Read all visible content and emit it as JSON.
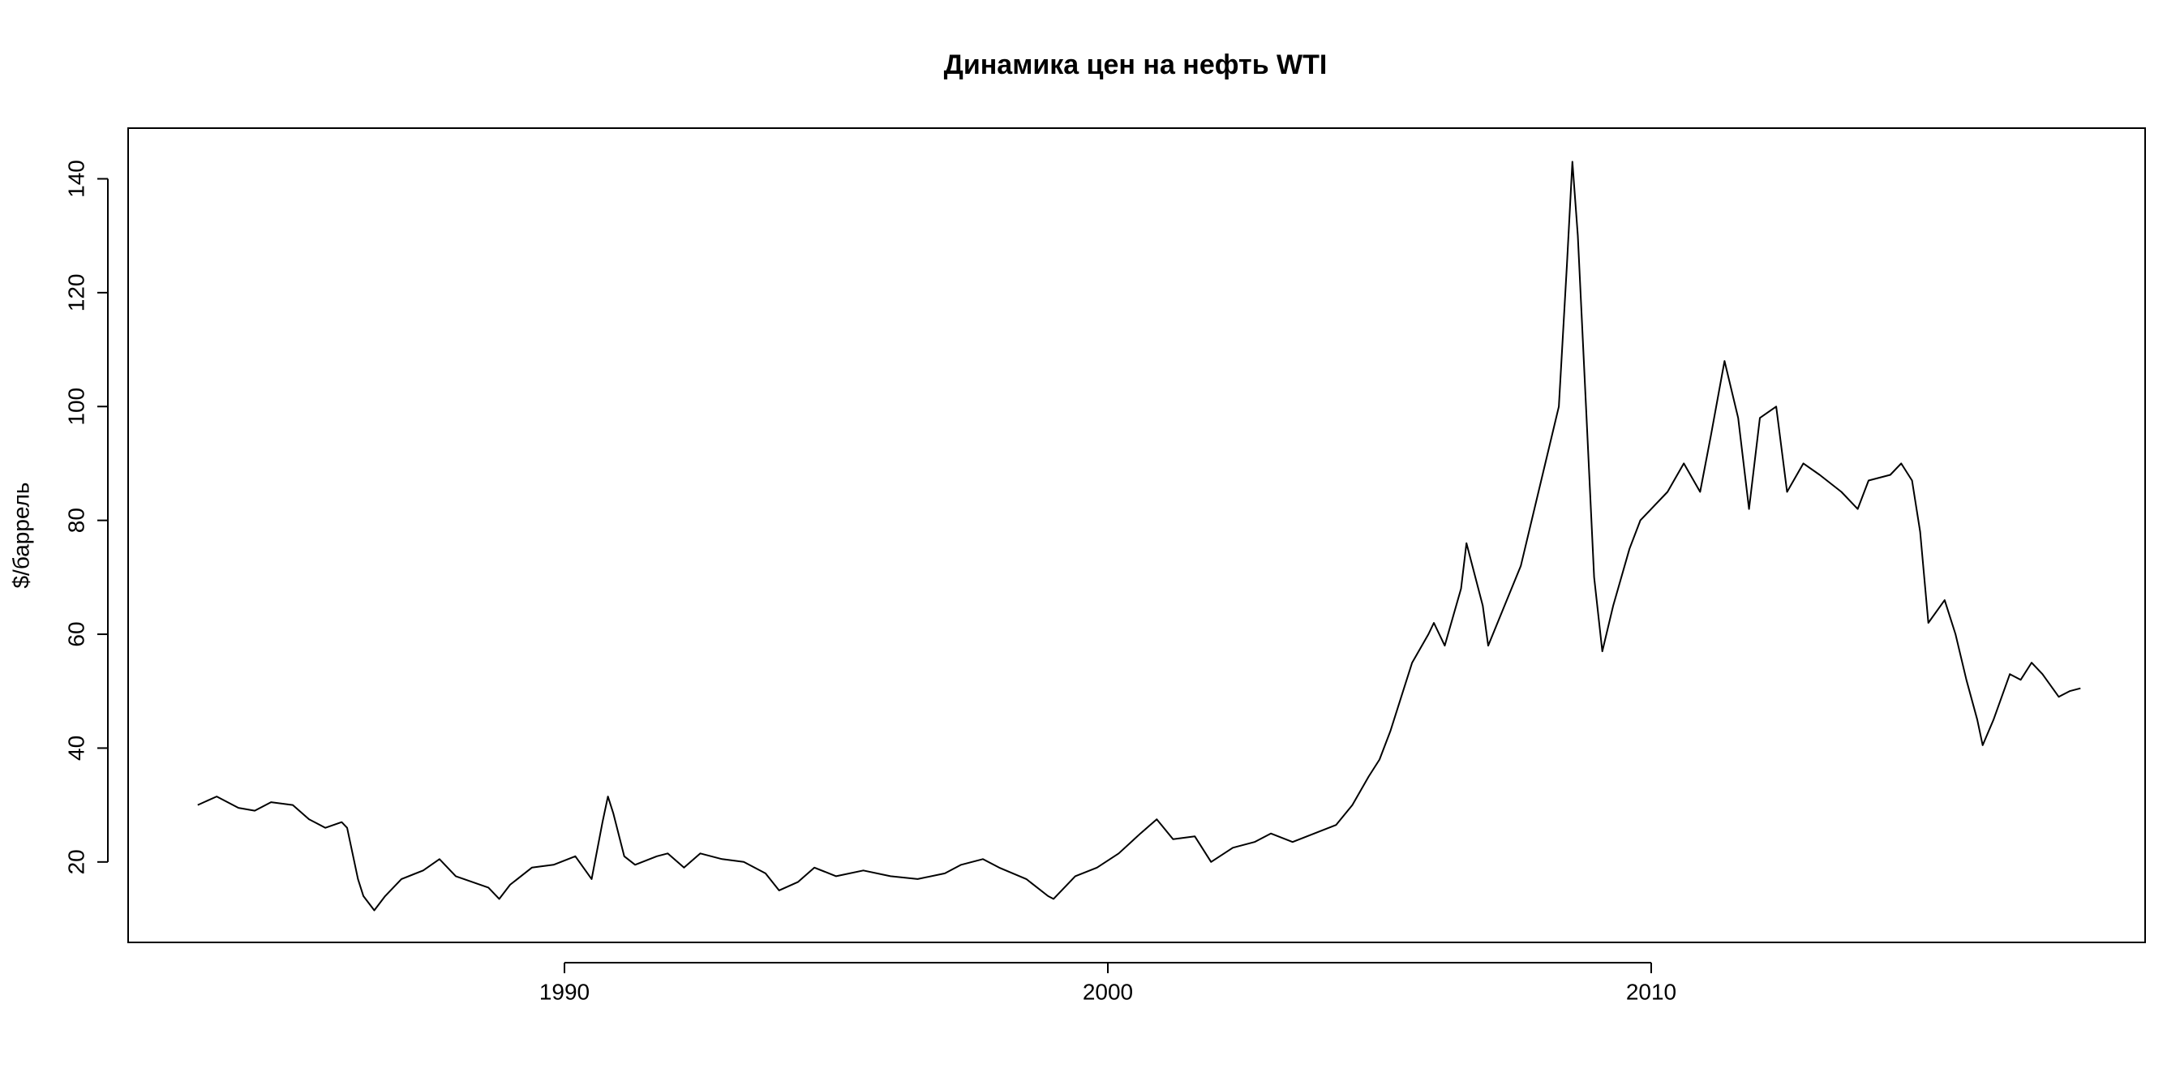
{
  "chart_data": {
    "type": "line",
    "title": "Динамика цен на нефть WTI",
    "ylabel": "$/баррель",
    "color": "#000000",
    "x": [
      1983.25,
      1983.6,
      1984.0,
      1984.3,
      1984.6,
      1985.0,
      1985.3,
      1985.6,
      1985.9,
      1986.0,
      1986.2,
      1986.3,
      1986.5,
      1986.7,
      1987.0,
      1987.4,
      1987.7,
      1988.0,
      1988.3,
      1988.6,
      1988.8,
      1989.0,
      1989.4,
      1989.8,
      1990.2,
      1990.5,
      1990.7,
      1990.8,
      1990.9,
      1991.1,
      1991.3,
      1991.7,
      1991.9,
      1992.2,
      1992.5,
      1992.9,
      1993.3,
      1993.7,
      1993.95,
      1994.3,
      1994.6,
      1995.0,
      1995.5,
      1996.0,
      1996.5,
      1997.0,
      1997.3,
      1997.7,
      1998.0,
      1998.5,
      1998.9,
      1999.0,
      1999.4,
      1999.8,
      2000.2,
      2000.6,
      2000.9,
      2001.2,
      2001.6,
      2001.9,
      2002.3,
      2002.7,
      2003.0,
      2003.4,
      2003.8,
      2004.2,
      2004.5,
      2004.8,
      2005.0,
      2005.2,
      2005.4,
      2005.6,
      2005.9,
      2006.0,
      2006.2,
      2006.5,
      2006.6,
      2006.9,
      2007.0,
      2007.3,
      2007.6,
      2007.8,
      2008.0,
      2008.3,
      2008.45,
      2008.55,
      2008.65,
      2008.8,
      2008.95,
      2009.1,
      2009.3,
      2009.6,
      2009.8,
      2010.0,
      2010.3,
      2010.6,
      2010.9,
      2011.1,
      2011.35,
      2011.6,
      2011.8,
      2012.0,
      2012.3,
      2012.5,
      2012.8,
      2013.1,
      2013.5,
      2013.8,
      2014.0,
      2014.4,
      2014.6,
      2014.8,
      2014.95,
      2015.1,
      2015.4,
      2015.6,
      2015.8,
      2016.0,
      2016.1,
      2016.3,
      2016.6,
      2016.8,
      2017.0,
      2017.2,
      2017.5,
      2017.7,
      2017.9
    ],
    "values": [
      30,
      31.5,
      29.5,
      29,
      30.5,
      30,
      27.5,
      26,
      27,
      26,
      17,
      14,
      11.5,
      14,
      17,
      18.5,
      20.5,
      17.5,
      16.5,
      15.5,
      13.5,
      16,
      19,
      19.5,
      21,
      17,
      27,
      31.5,
      28.5,
      21,
      19.5,
      21,
      21.5,
      19,
      21.5,
      20.5,
      20,
      18,
      15,
      16.5,
      19,
      17.5,
      18.5,
      17.5,
      17,
      18,
      19.5,
      20.5,
      19,
      17,
      14,
      13.5,
      17.5,
      19,
      21.5,
      25,
      27.5,
      24,
      24.5,
      20,
      22.5,
      23.5,
      25,
      23.5,
      25,
      26.5,
      30,
      35,
      38,
      43,
      49,
      55,
      60,
      62,
      58,
      68,
      76,
      65,
      58,
      65,
      72,
      80,
      88,
      100,
      125,
      143,
      130,
      100,
      70,
      57,
      65,
      75,
      80,
      82,
      85,
      90,
      85,
      95,
      108,
      98,
      82,
      98,
      100,
      85,
      90,
      88,
      85,
      82,
      87,
      88,
      90,
      87,
      78,
      62,
      66,
      60,
      52,
      45,
      40.5,
      45,
      53,
      52,
      55,
      53,
      49,
      50,
      50.5
    ],
    "xlim": [
      1981.97,
      2019.09
    ],
    "xticks": [
      1990,
      2000,
      2010
    ],
    "ylim": [
      5.87,
      148.9
    ],
    "yticks": [
      20,
      40,
      60,
      80,
      100,
      120,
      140
    ]
  }
}
